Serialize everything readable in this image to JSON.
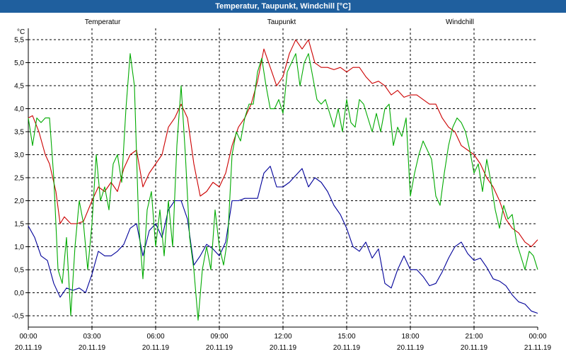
{
  "chart_data": {
    "type": "line",
    "title": "Temperatur, Taupunkt, Windchill [°C]",
    "ylabel": "°C",
    "ylim": [
      -0.75,
      5.75
    ],
    "xlim_hours": [
      0,
      24
    ],
    "yticks": [
      "5,5",
      "5,0",
      "4,5",
      "4,0",
      "3,5",
      "3,0",
      "2,5",
      "2,0",
      "1,5",
      "1,0",
      "0,5",
      "0,0",
      "-0,5"
    ],
    "ytick_values": [
      5.5,
      5.0,
      4.5,
      4.0,
      3.5,
      3.0,
      2.5,
      2.0,
      1.5,
      1.0,
      0.5,
      0.0,
      -0.5
    ],
    "xticks": [
      {
        "hour": 0,
        "time": "00:00",
        "date": "20.11.19"
      },
      {
        "hour": 3,
        "time": "03:00",
        "date": "20.11.19"
      },
      {
        "hour": 6,
        "time": "06:00",
        "date": "20.11.19"
      },
      {
        "hour": 9,
        "time": "09:00",
        "date": "20.11.19"
      },
      {
        "hour": 12,
        "time": "12:00",
        "date": "20.11.19"
      },
      {
        "hour": 15,
        "time": "15:00",
        "date": "20.11.19"
      },
      {
        "hour": 18,
        "time": "18:00",
        "date": "20.11.19"
      },
      {
        "hour": 21,
        "time": "21:00",
        "date": "20.11.19"
      },
      {
        "hour": 24,
        "time": "00:00",
        "date": "21.11.19"
      }
    ],
    "series": [
      {
        "name": "Temperatur",
        "color": "#cc0000",
        "x": [
          0,
          0.2,
          0.5,
          0.8,
          1.0,
          1.3,
          1.5,
          1.7,
          2.0,
          2.3,
          2.6,
          3.0,
          3.3,
          3.6,
          3.9,
          4.2,
          4.5,
          4.8,
          5.1,
          5.4,
          5.7,
          6.0,
          6.3,
          6.6,
          6.9,
          7.2,
          7.5,
          7.8,
          8.1,
          8.4,
          8.7,
          9.0,
          9.3,
          9.6,
          9.9,
          10.2,
          10.5,
          10.8,
          11.1,
          11.4,
          11.7,
          12.0,
          12.3,
          12.6,
          12.9,
          13.2,
          13.5,
          13.8,
          14.1,
          14.4,
          14.7,
          15.0,
          15.3,
          15.6,
          15.9,
          16.2,
          16.5,
          16.8,
          17.1,
          17.4,
          17.7,
          18.0,
          18.3,
          18.6,
          18.9,
          19.2,
          19.5,
          19.8,
          20.1,
          20.4,
          20.7,
          21.0,
          21.3,
          21.6,
          21.9,
          22.2,
          22.5,
          22.8,
          23.1,
          23.4,
          23.7,
          24.0
        ],
        "values": [
          3.8,
          3.85,
          3.5,
          3.0,
          2.8,
          2.2,
          1.5,
          1.65,
          1.5,
          1.5,
          1.55,
          2.0,
          2.3,
          2.2,
          2.4,
          2.2,
          2.7,
          3.0,
          3.1,
          2.3,
          2.6,
          2.8,
          3.0,
          3.6,
          3.8,
          4.1,
          3.8,
          2.8,
          2.1,
          2.2,
          2.4,
          2.3,
          2.6,
          3.2,
          3.6,
          3.8,
          4.1,
          4.6,
          5.3,
          4.9,
          4.5,
          4.7,
          5.2,
          5.5,
          5.3,
          5.5,
          5.0,
          4.9,
          4.9,
          4.85,
          4.9,
          4.8,
          4.9,
          4.9,
          4.7,
          4.55,
          4.6,
          4.5,
          4.3,
          4.4,
          4.25,
          4.3,
          4.3,
          4.2,
          4.1,
          4.1,
          3.8,
          3.6,
          3.5,
          3.2,
          3.1,
          3.0,
          2.8,
          2.5,
          2.3,
          2.0,
          1.6,
          1.4,
          1.3,
          1.1,
          1.0,
          1.15
        ]
      },
      {
        "name": "Taupunkt",
        "color": "#000099",
        "x": [
          0,
          0.3,
          0.6,
          0.9,
          1.2,
          1.5,
          1.8,
          2.1,
          2.4,
          2.7,
          3.0,
          3.3,
          3.6,
          3.9,
          4.2,
          4.5,
          4.8,
          5.1,
          5.4,
          5.7,
          6.0,
          6.3,
          6.6,
          6.9,
          7.2,
          7.5,
          7.8,
          8.1,
          8.4,
          8.7,
          9.0,
          9.3,
          9.6,
          9.9,
          10.2,
          10.5,
          10.8,
          11.1,
          11.4,
          11.7,
          12.0,
          12.3,
          12.6,
          12.9,
          13.2,
          13.5,
          13.8,
          14.1,
          14.4,
          14.7,
          15.0,
          15.3,
          15.6,
          15.9,
          16.2,
          16.5,
          16.8,
          17.1,
          17.4,
          17.7,
          18.0,
          18.3,
          18.6,
          18.9,
          19.2,
          19.5,
          19.8,
          20.1,
          20.4,
          20.7,
          21.0,
          21.3,
          21.6,
          21.9,
          22.2,
          22.5,
          22.8,
          23.1,
          23.4,
          23.7,
          24.0
        ],
        "values": [
          1.45,
          1.2,
          0.8,
          0.7,
          0.2,
          -0.1,
          0.1,
          0.05,
          0.1,
          0.0,
          0.4,
          0.9,
          0.8,
          0.8,
          0.9,
          1.05,
          1.4,
          1.5,
          0.8,
          1.35,
          1.5,
          1.2,
          1.8,
          2.0,
          2.0,
          1.6,
          0.6,
          0.8,
          1.05,
          0.95,
          0.8,
          1.1,
          2.0,
          2.0,
          2.05,
          2.05,
          2.05,
          2.6,
          2.75,
          2.3,
          2.3,
          2.4,
          2.55,
          2.7,
          2.3,
          2.5,
          2.4,
          2.2,
          1.9,
          1.7,
          1.4,
          1.0,
          0.9,
          1.1,
          0.75,
          0.95,
          0.2,
          0.1,
          0.5,
          0.8,
          0.5,
          0.5,
          0.35,
          0.15,
          0.2,
          0.45,
          0.75,
          1.0,
          1.1,
          0.85,
          0.7,
          0.75,
          0.55,
          0.3,
          0.25,
          0.15,
          -0.05,
          -0.2,
          -0.25,
          -0.4,
          -0.45
        ]
      },
      {
        "name": "Windchill",
        "color": "#00aa00",
        "x": [
          0,
          0.2,
          0.4,
          0.6,
          0.8,
          1.0,
          1.2,
          1.4,
          1.6,
          1.8,
          2.0,
          2.2,
          2.4,
          2.6,
          2.8,
          3.0,
          3.2,
          3.4,
          3.6,
          3.8,
          4.0,
          4.2,
          4.4,
          4.6,
          4.8,
          5.0,
          5.2,
          5.4,
          5.6,
          5.8,
          6.0,
          6.2,
          6.4,
          6.6,
          6.8,
          7.0,
          7.2,
          7.4,
          7.6,
          7.8,
          8.0,
          8.2,
          8.4,
          8.6,
          8.8,
          9.0,
          9.2,
          9.4,
          9.6,
          9.8,
          10.0,
          10.2,
          10.4,
          10.6,
          10.8,
          11.0,
          11.2,
          11.4,
          11.6,
          11.8,
          12.0,
          12.2,
          12.4,
          12.6,
          12.8,
          13.0,
          13.2,
          13.4,
          13.6,
          13.8,
          14.0,
          14.2,
          14.4,
          14.6,
          14.8,
          15.0,
          15.2,
          15.4,
          15.6,
          15.8,
          16.0,
          16.2,
          16.4,
          16.6,
          16.8,
          17.0,
          17.2,
          17.4,
          17.6,
          17.8,
          18.0,
          18.2,
          18.4,
          18.6,
          18.8,
          19.0,
          19.2,
          19.4,
          19.6,
          19.8,
          20.0,
          20.2,
          20.4,
          20.6,
          20.8,
          21.0,
          21.2,
          21.4,
          21.6,
          21.8,
          22.0,
          22.2,
          22.4,
          22.6,
          22.8,
          23.0,
          23.2,
          23.4,
          23.6,
          23.8,
          24.0
        ],
        "values": [
          3.8,
          3.2,
          3.8,
          3.7,
          3.8,
          3.8,
          2.5,
          0.5,
          0.2,
          1.2,
          -0.5,
          1.0,
          2.0,
          1.5,
          0.5,
          1.5,
          3.0,
          2.0,
          2.3,
          1.8,
          2.8,
          3.0,
          2.4,
          4.0,
          5.2,
          4.5,
          1.5,
          0.3,
          1.8,
          2.2,
          1.0,
          1.8,
          0.8,
          2.0,
          1.0,
          3.2,
          4.5,
          3.0,
          1.2,
          0.5,
          -0.6,
          0.5,
          1.0,
          0.5,
          1.8,
          1.0,
          0.6,
          1.2,
          3.0,
          3.5,
          3.3,
          3.8,
          4.1,
          4.1,
          4.8,
          5.1,
          4.5,
          4.0,
          4.0,
          4.2,
          3.9,
          4.8,
          5.0,
          5.2,
          4.5,
          5.0,
          5.2,
          4.7,
          4.2,
          4.1,
          4.2,
          3.9,
          3.6,
          4.0,
          3.5,
          4.2,
          3.7,
          3.6,
          4.2,
          4.1,
          3.8,
          3.5,
          3.9,
          3.5,
          4.0,
          4.1,
          3.2,
          3.6,
          3.4,
          3.8,
          2.1,
          2.6,
          3.0,
          3.3,
          3.1,
          2.9,
          2.1,
          1.9,
          2.6,
          3.2,
          3.6,
          3.8,
          3.7,
          3.5,
          3.1,
          2.6,
          2.8,
          2.2,
          2.9,
          2.4,
          1.8,
          1.4,
          1.9,
          1.6,
          1.7,
          1.1,
          0.8,
          0.5,
          0.9,
          0.8,
          0.5
        ]
      }
    ]
  }
}
